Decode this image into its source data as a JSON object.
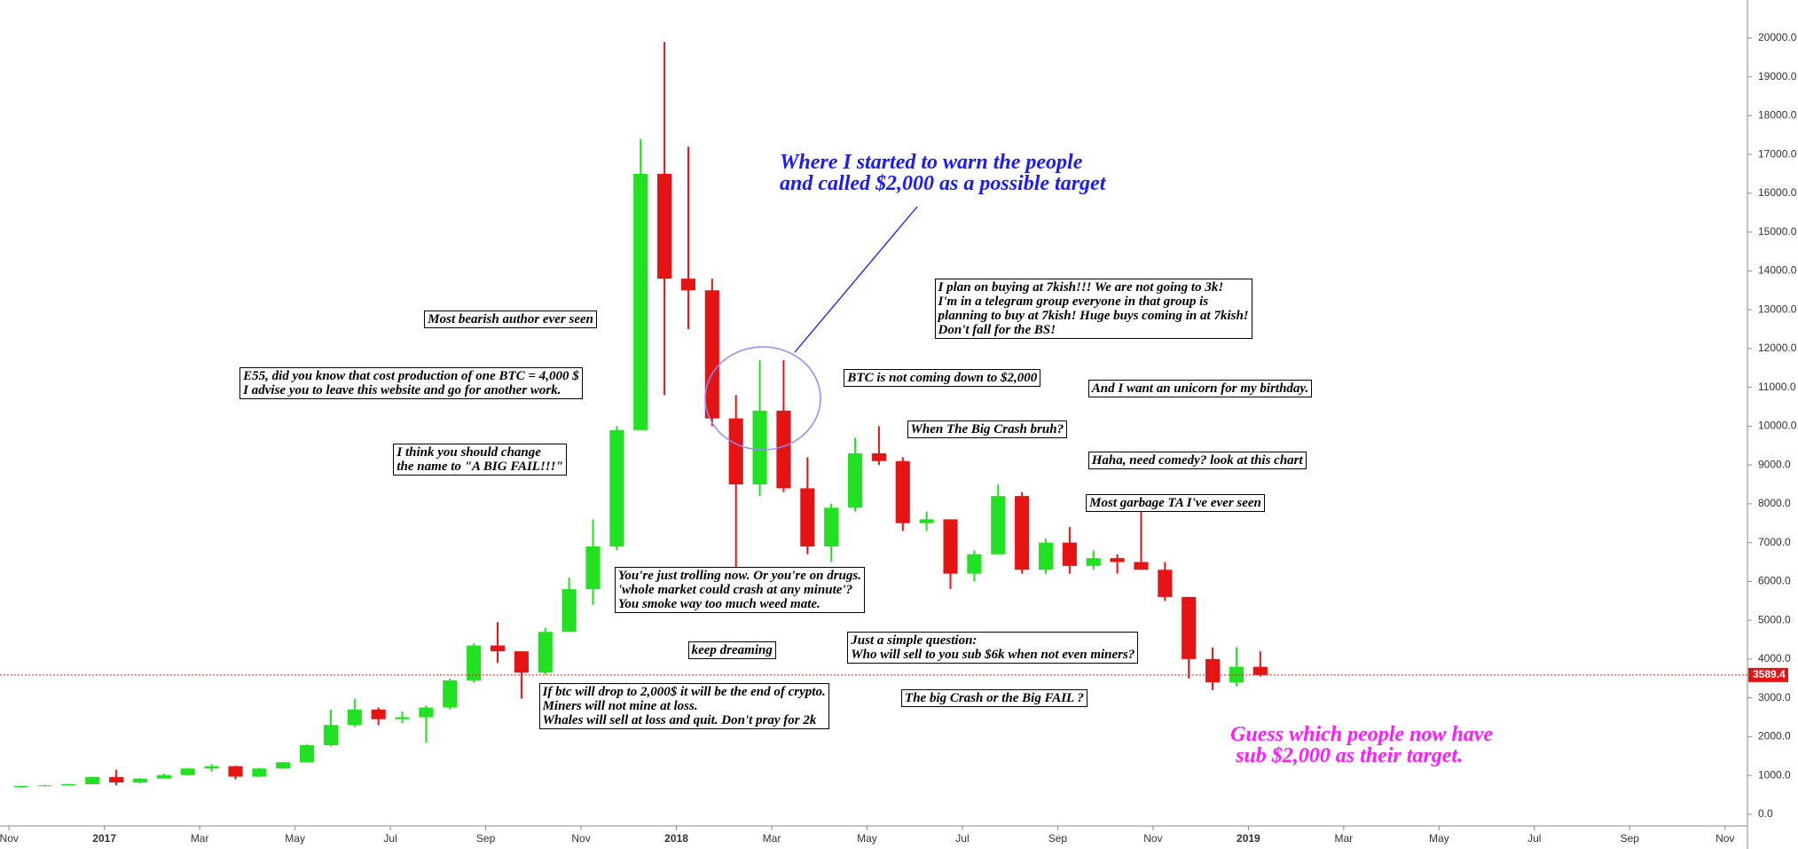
{
  "chart_data": {
    "type": "candlestick",
    "x": [
      0.25,
      0.75,
      1.25,
      1.75,
      2.25,
      2.75,
      3.25,
      3.75,
      4.25,
      4.75,
      5.25,
      5.75,
      6.25,
      6.75,
      7.25,
      7.75,
      8.25,
      8.75,
      9.25,
      9.75,
      10.25,
      10.75,
      11.25,
      11.75,
      12.25,
      12.75,
      13.25,
      13.75,
      14.25,
      14.75,
      15.25,
      15.75,
      16.25,
      16.75,
      17.25,
      17.75,
      18.25,
      18.75,
      19.25,
      19.75,
      20.25,
      20.75,
      21.25,
      21.75,
      22.25,
      22.75,
      23.25,
      23.75,
      24.25,
      24.75,
      25.25,
      25.75,
      26.25
    ],
    "open": [
      700,
      730,
      745,
      775,
      960,
      820,
      920,
      1010,
      1180,
      1240,
      970,
      1180,
      1340,
      1780,
      2300,
      2700,
      2450,
      2500,
      2750,
      3450,
      4350,
      4200,
      3650,
      4700,
      5800,
      6900,
      9900,
      16500,
      13800,
      13500,
      10200,
      8500,
      10400,
      8400,
      6900,
      7900,
      9300,
      9100,
      7500,
      7600,
      6200,
      6700,
      8200,
      6300,
      7000,
      6400,
      6600,
      6500,
      6300,
      5600,
      4000,
      3400,
      3800
    ],
    "high": [
      740,
      760,
      790,
      970,
      1150,
      930,
      1050,
      1190,
      1290,
      1250,
      1200,
      1350,
      1800,
      2700,
      2980,
      2750,
      2650,
      2800,
      3500,
      4400,
      4950,
      4200,
      4800,
      6100,
      7600,
      10000,
      17400,
      19900,
      17200,
      13800,
      10800,
      11700,
      11700,
      9200,
      8000,
      9700,
      10000,
      9200,
      7800,
      7600,
      6800,
      8500,
      8300,
      7100,
      7400,
      6800,
      6700,
      7800,
      6500,
      5600,
      4300,
      4300,
      4200
    ],
    "low": [
      690,
      720,
      740,
      770,
      750,
      800,
      920,
      1000,
      1100,
      900,
      960,
      1170,
      1330,
      1750,
      2250,
      2300,
      2350,
      1840,
      2700,
      3400,
      3900,
      2980,
      3600,
      4700,
      5400,
      6800,
      9900,
      10800,
      12500,
      10000,
      6000,
      8200,
      8300,
      6700,
      6500,
      7800,
      9000,
      7300,
      7300,
      5800,
      6000,
      6700,
      6200,
      6200,
      6200,
      6300,
      6200,
      6400,
      5500,
      3500,
      3200,
      3300,
      3550
    ],
    "close": [
      730,
      745,
      775,
      960,
      820,
      920,
      1010,
      1180,
      1240,
      970,
      1180,
      1340,
      1780,
      2300,
      2700,
      2450,
      2500,
      2750,
      3450,
      4350,
      4200,
      3650,
      4700,
      5800,
      6900,
      9900,
      16500,
      13800,
      13500,
      10200,
      8500,
      10400,
      8400,
      6900,
      7900,
      9300,
      9100,
      7500,
      7600,
      6200,
      6700,
      8200,
      6300,
      7000,
      6400,
      6600,
      6500,
      6300,
      5600,
      4000,
      3400,
      3800,
      3589.4
    ],
    "up_color": "#22e022",
    "down_color": "#e51414",
    "xlim": [
      -0.19,
      36.47
    ],
    "ylim": [
      -300,
      20980
    ],
    "xticks": [
      {
        "value": 0,
        "label": "Nov"
      },
      {
        "value": 2,
        "label": "2017"
      },
      {
        "value": 4,
        "label": "Mar"
      },
      {
        "value": 6,
        "label": "May"
      },
      {
        "value": 8,
        "label": "Jul"
      },
      {
        "value": 10,
        "label": "Sep"
      },
      {
        "value": 12,
        "label": "Nov"
      },
      {
        "value": 14,
        "label": "2018"
      },
      {
        "value": 16,
        "label": "Mar"
      },
      {
        "value": 18,
        "label": "May"
      },
      {
        "value": 20,
        "label": "Jul"
      },
      {
        "value": 22,
        "label": "Sep"
      },
      {
        "value": 24,
        "label": "Nov"
      },
      {
        "value": 26,
        "label": "2019"
      },
      {
        "value": 28,
        "label": "Mar"
      },
      {
        "value": 30,
        "label": "May"
      },
      {
        "value": 32,
        "label": "Jul"
      },
      {
        "value": 34,
        "label": "Sep"
      },
      {
        "value": 36,
        "label": "Nov"
      }
    ],
    "yticks": [
      {
        "value": 0,
        "label": "0.0"
      },
      {
        "value": 1000,
        "label": "1000.0"
      },
      {
        "value": 2000,
        "label": "2000.0"
      },
      {
        "value": 3000,
        "label": "3000.0"
      },
      {
        "value": 4000,
        "label": "4000.0"
      },
      {
        "value": 5000,
        "label": "5000.0"
      },
      {
        "value": 6000,
        "label": "6000.0"
      },
      {
        "value": 7000,
        "label": "7000.0"
      },
      {
        "value": 8000,
        "label": "8000.0"
      },
      {
        "value": 9000,
        "label": "9000.0"
      },
      {
        "value": 10000,
        "label": "10000.0"
      },
      {
        "value": 11000,
        "label": "11000.0"
      },
      {
        "value": 12000,
        "label": "12000.0"
      },
      {
        "value": 13000,
        "label": "13000.0"
      },
      {
        "value": 14000,
        "label": "14000.0"
      },
      {
        "value": 15000,
        "label": "15000.0"
      },
      {
        "value": 16000,
        "label": "16000.0"
      },
      {
        "value": 17000,
        "label": "17000.0"
      },
      {
        "value": 18000,
        "label": "18000.0"
      },
      {
        "value": 19000,
        "label": "19000.0"
      },
      {
        "value": 20000,
        "label": "20000.0"
      }
    ],
    "last_price": 3589.4,
    "last_price_color": "#e51414",
    "annotations": [
      {
        "lines": [
          "Where I started to warn the people",
          "and called $2,000 as a possible target"
        ],
        "color": "#1a1aff",
        "boxed": false
      },
      {
        "lines": [
          "Most bearish author ever seen"
        ],
        "boxed": true
      },
      {
        "lines": [
          "E55, did you know that cost production of one BTC = 4,000 $",
          "I advise you to leave this website and go for another work."
        ],
        "boxed": true
      },
      {
        "lines": [
          "I think you should change",
          "the name to \"A BIG FAIL!!!\""
        ],
        "boxed": true
      },
      {
        "lines": [
          "You're just trolling now. Or you're on drugs.",
          "'whole market could crash at any minute'?",
          "You smoke way too much weed mate."
        ],
        "boxed": true
      },
      {
        "lines": [
          "keep dreaming"
        ],
        "boxed": true
      },
      {
        "lines": [
          "If btc will drop to 2,000$ it will be the end of crypto.",
          "Miners will not mine at loss.",
          "Whales will sell at loss and quit. Don't pray for 2k"
        ],
        "boxed": true
      },
      {
        "lines": [
          "I plan on buying at 7kish!!! We are not going to 3k!",
          "I'm in a telegram group everyone in that group is",
          "planning to buy at 7kish! Huge buys coming in at 7kish!",
          "Don't fall for the BS!"
        ],
        "boxed": true
      },
      {
        "lines": [
          "BTC is not coming down to $2,000"
        ],
        "boxed": true
      },
      {
        "lines": [
          "When The Big Crash bruh?"
        ],
        "boxed": true
      },
      {
        "lines": [
          "And I want an unicorn for my birthday."
        ],
        "boxed": true
      },
      {
        "lines": [
          "Haha, need comedy? look at this chart"
        ],
        "boxed": true
      },
      {
        "lines": [
          "Most garbage TA I've ever seen"
        ],
        "boxed": true
      },
      {
        "lines": [
          "Just a simple question:",
          "Who will sell to you sub $6k when not even miners?"
        ],
        "boxed": true
      },
      {
        "lines": [
          "The big Crash or the Big FAIL ?"
        ],
        "boxed": true
      },
      {
        "lines": [
          "Guess which people now have",
          " sub $2,000 as their target."
        ],
        "color": "#ff1aff",
        "boxed": false
      }
    ]
  }
}
